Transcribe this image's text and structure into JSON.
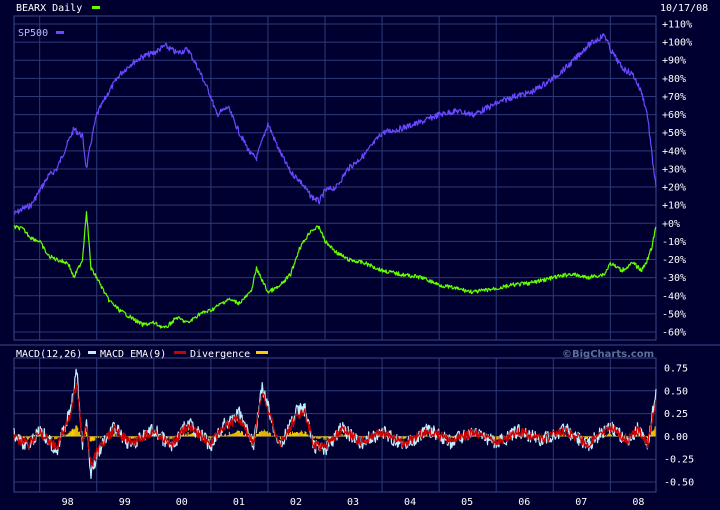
{
  "chart_data": [
    {
      "type": "line",
      "title": "BEARX Daily",
      "date_label": "10/17/08",
      "ylabel": "",
      "ylim": [
        -60,
        110
      ],
      "yticks": [
        110,
        100,
        90,
        80,
        70,
        60,
        50,
        40,
        30,
        20,
        10,
        0,
        -10,
        -20,
        -30,
        -40,
        -50,
        -60
      ],
      "ytick_labels": [
        "+110%",
        "+100%",
        "+90%",
        "+80%",
        "+70%",
        "+60%",
        "+50%",
        "+40%",
        "+30%",
        "+20%",
        "+10%",
        "+0%",
        "-10%",
        "-20%",
        "-30%",
        "-40%",
        "-50%",
        "-60%"
      ],
      "x_range": [
        1997.55,
        2008.8
      ],
      "grid": true,
      "series": [
        {
          "name": "BEARX Daily",
          "color": "#66ff00",
          "x": [
            1997.55,
            1997.7,
            1997.85,
            1998.0,
            1998.15,
            1998.3,
            1998.5,
            1998.6,
            1998.75,
            1998.82,
            1998.9,
            1999.0,
            1999.2,
            1999.4,
            1999.6,
            1999.8,
            2000.0,
            2000.2,
            2000.4,
            2000.6,
            2000.8,
            2001.0,
            2001.1,
            2001.3,
            2001.5,
            2001.7,
            2001.8,
            2002.0,
            2002.2,
            2002.4,
            2002.55,
            2002.75,
            2002.9,
            2003.0,
            2003.2,
            2003.4,
            2003.7,
            2004.0,
            2004.3,
            2004.7,
            2005.0,
            2005.3,
            2005.6,
            2006.0,
            2006.3,
            2006.6,
            2007.0,
            2007.3,
            2007.6,
            2007.9,
            2008.0,
            2008.2,
            2008.4,
            2008.55,
            2008.65,
            2008.72,
            2008.8
          ],
          "values": [
            -2,
            -3,
            -8,
            -10,
            -18,
            -20,
            -22,
            -30,
            -20,
            7,
            -25,
            -30,
            -42,
            -48,
            -52,
            -56,
            -55,
            -58,
            -52,
            -55,
            -50,
            -48,
            -46,
            -42,
            -44,
            -38,
            -25,
            -38,
            -35,
            -28,
            -14,
            -4,
            -2,
            -10,
            -16,
            -20,
            -22,
            -26,
            -28,
            -30,
            -34,
            -36,
            -38,
            -36,
            -34,
            -33,
            -30,
            -28,
            -30,
            -28,
            -22,
            -26,
            -22,
            -26,
            -20,
            -14,
            -2
          ]
        },
        {
          "name": "SP500",
          "color": "#6a48ff",
          "x": [
            1997.55,
            1997.7,
            1997.85,
            1998.0,
            1998.15,
            1998.3,
            1998.5,
            1998.6,
            1998.75,
            1998.82,
            1998.9,
            1999.0,
            1999.2,
            1999.4,
            1999.6,
            1999.8,
            2000.0,
            2000.2,
            2000.4,
            2000.6,
            2000.8,
            2001.0,
            2001.1,
            2001.3,
            2001.5,
            2001.7,
            2001.8,
            2002.0,
            2002.2,
            2002.4,
            2002.55,
            2002.75,
            2002.9,
            2003.0,
            2003.2,
            2003.4,
            2003.7,
            2004.0,
            2004.3,
            2004.7,
            2005.0,
            2005.3,
            2005.6,
            2006.0,
            2006.3,
            2006.6,
            2007.0,
            2007.3,
            2007.6,
            2007.9,
            2008.0,
            2008.2,
            2008.4,
            2008.55,
            2008.65,
            2008.72,
            2008.8
          ],
          "values": [
            5,
            8,
            10,
            18,
            26,
            30,
            45,
            52,
            48,
            30,
            45,
            60,
            72,
            82,
            88,
            92,
            94,
            98,
            94,
            96,
            84,
            70,
            60,
            64,
            50,
            38,
            36,
            55,
            40,
            28,
            24,
            15,
            12,
            18,
            20,
            30,
            38,
            50,
            52,
            56,
            60,
            62,
            60,
            66,
            70,
            72,
            80,
            88,
            98,
            104,
            96,
            86,
            82,
            72,
            60,
            40,
            20
          ]
        }
      ]
    },
    {
      "type": "line",
      "title": "MACD(12,26)",
      "xlabel": "",
      "ylabel": "",
      "ylim": [
        -0.5,
        0.75
      ],
      "yticks": [
        0.75,
        0.5,
        0.25,
        0.0,
        -0.25,
        -0.5
      ],
      "ytick_labels": [
        "0.75",
        "0.50",
        "0.25",
        "0.00",
        "-0.25",
        "-0.50"
      ],
      "x_range": [
        1997.55,
        2008.8
      ],
      "xticks": [
        1998.0,
        1999.0,
        2000.0,
        2001.0,
        2002.0,
        2003.0,
        2004.0,
        2005.0,
        2006.0,
        2007.0,
        2008.0
      ],
      "xtick_labels": [
        "98",
        "99",
        "00",
        "01",
        "02",
        "03",
        "04",
        "05",
        "06",
        "07",
        "08"
      ],
      "grid": true,
      "series": [
        {
          "name": "MACD(12,26)",
          "color": "#bfefff",
          "x": [
            1997.55,
            1997.8,
            1998.0,
            1998.3,
            1998.55,
            1998.65,
            1998.75,
            1998.82,
            1998.9,
            1999.0,
            1999.3,
            1999.6,
            2000.0,
            2000.3,
            2000.6,
            2001.0,
            2001.2,
            2001.5,
            2001.75,
            2001.9,
            2002.2,
            2002.5,
            2002.65,
            2002.8,
            2003.0,
            2003.3,
            2003.6,
            2004.0,
            2004.4,
            2004.8,
            2005.2,
            2005.6,
            2006.0,
            2006.4,
            2006.8,
            2007.2,
            2007.6,
            2008.0,
            2008.3,
            2008.5,
            2008.65,
            2008.72,
            2008.8
          ],
          "values": [
            0.02,
            -0.12,
            0.08,
            -0.15,
            0.3,
            0.72,
            -0.1,
            0.15,
            -0.42,
            -0.2,
            0.1,
            -0.1,
            0.08,
            -0.12,
            0.15,
            -0.1,
            0.12,
            0.25,
            -0.1,
            0.55,
            -0.12,
            0.28,
            0.3,
            -0.1,
            -0.15,
            0.1,
            -0.08,
            0.05,
            -0.1,
            0.08,
            -0.06,
            0.05,
            -0.08,
            0.06,
            -0.04,
            0.08,
            -0.1,
            0.12,
            -0.05,
            0.1,
            -0.1,
            0.15,
            0.52
          ]
        },
        {
          "name": "MACD EMA(9)",
          "color": "#cc0000",
          "x": [
            1997.55,
            1997.8,
            1998.0,
            1998.3,
            1998.55,
            1998.65,
            1998.75,
            1998.82,
            1998.9,
            1999.0,
            1999.3,
            1999.6,
            2000.0,
            2000.3,
            2000.6,
            2001.0,
            2001.2,
            2001.5,
            2001.75,
            2001.9,
            2002.2,
            2002.5,
            2002.65,
            2002.8,
            2003.0,
            2003.3,
            2003.6,
            2004.0,
            2004.4,
            2004.8,
            2005.2,
            2005.6,
            2006.0,
            2006.4,
            2006.8,
            2007.2,
            2007.6,
            2008.0,
            2008.3,
            2008.5,
            2008.65,
            2008.72,
            2008.8
          ],
          "values": [
            0.0,
            -0.1,
            0.05,
            -0.12,
            0.25,
            0.6,
            -0.05,
            0.1,
            -0.35,
            -0.18,
            0.08,
            -0.08,
            0.06,
            -0.1,
            0.12,
            -0.08,
            0.1,
            0.2,
            -0.08,
            0.48,
            -0.1,
            0.22,
            0.26,
            -0.08,
            -0.12,
            0.08,
            -0.06,
            0.04,
            -0.08,
            0.06,
            -0.05,
            0.04,
            -0.06,
            0.05,
            -0.03,
            0.06,
            -0.08,
            0.1,
            -0.04,
            0.08,
            -0.08,
            0.12,
            0.4
          ]
        },
        {
          "name": "Divergence",
          "color": "#ffcc00",
          "x": [
            1997.55,
            1997.8,
            1998.0,
            1998.3,
            1998.55,
            1998.65,
            1998.75,
            1998.82,
            1998.9,
            1999.0,
            1999.3,
            1999.6,
            2000.0,
            2000.3,
            2000.6,
            2001.0,
            2001.2,
            2001.5,
            2001.75,
            2001.9,
            2002.2,
            2002.5,
            2002.65,
            2002.8,
            2003.0,
            2003.3,
            2003.6,
            2004.0,
            2004.4,
            2004.8,
            2005.2,
            2005.6,
            2006.0,
            2006.4,
            2006.8,
            2007.2,
            2007.6,
            2008.0,
            2008.3,
            2008.5,
            2008.65,
            2008.72,
            2008.8
          ],
          "values": [
            0.02,
            -0.02,
            0.03,
            -0.03,
            0.05,
            0.12,
            -0.05,
            0.05,
            -0.07,
            -0.02,
            0.02,
            -0.02,
            0.02,
            -0.02,
            0.03,
            -0.02,
            0.02,
            0.05,
            -0.02,
            0.07,
            -0.02,
            0.06,
            0.04,
            -0.02,
            -0.03,
            0.02,
            -0.02,
            0.01,
            -0.02,
            0.02,
            -0.01,
            0.01,
            -0.02,
            0.01,
            -0.01,
            0.02,
            -0.02,
            0.02,
            -0.01,
            0.02,
            -0.02,
            0.03,
            0.12
          ]
        }
      ]
    }
  ],
  "watermark": "©BigCharts.com"
}
